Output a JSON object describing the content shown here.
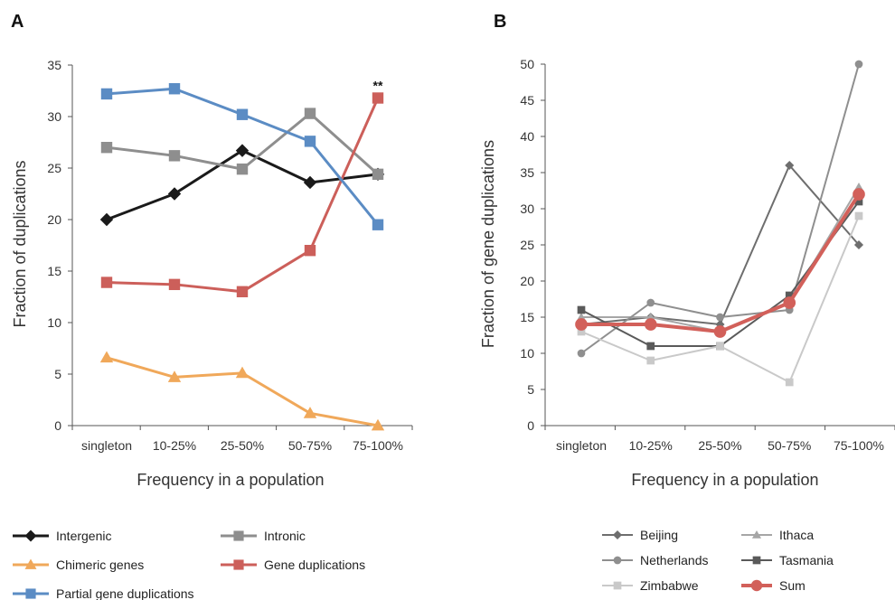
{
  "chart_data": [
    {
      "panel": "A",
      "type": "line",
      "categories": [
        "singleton",
        "10-25%",
        "25-50%",
        "50-75%",
        "75-100%"
      ],
      "xlabel": "Frequency in a population",
      "ylabel": "Fraction of duplications",
      "ylim": [
        0,
        35
      ],
      "yticks": [
        0,
        5,
        10,
        15,
        20,
        25,
        30,
        35
      ],
      "grid": false,
      "legend_position": "bottom",
      "annotations": [
        {
          "text": "**",
          "category": "75-100%",
          "y": 31.8
        }
      ],
      "series": [
        {
          "name": "Intergenic",
          "values": [
            20.0,
            22.5,
            26.7,
            23.6,
            24.4
          ],
          "color": "#1a1a1a",
          "marker": "diamond",
          "width": 3
        },
        {
          "name": "Intronic",
          "values": [
            27.0,
            26.2,
            24.9,
            30.3,
            24.4
          ],
          "color": "#8e8e8e",
          "marker": "square",
          "width": 3
        },
        {
          "name": "Chimeric genes",
          "values": [
            6.6,
            4.7,
            5.1,
            1.2,
            0.0
          ],
          "color": "#f0a85a",
          "marker": "triangle",
          "width": 3
        },
        {
          "name": "Gene duplications",
          "values": [
            13.9,
            13.7,
            13.0,
            17.0,
            31.8
          ],
          "color": "#cc5f5a",
          "marker": "square",
          "width": 3
        },
        {
          "name": "Partial gene duplications",
          "values": [
            32.2,
            32.7,
            30.2,
            27.6,
            19.5
          ],
          "color": "#5b8cc4",
          "marker": "square",
          "width": 3
        }
      ]
    },
    {
      "panel": "B",
      "type": "line",
      "categories": [
        "singleton",
        "10-25%",
        "25-50%",
        "50-75%",
        "75-100%"
      ],
      "xlabel": "Frequency in a population",
      "ylabel": "Fraction of gene duplications",
      "ylim": [
        0,
        50
      ],
      "yticks": [
        0,
        5,
        10,
        15,
        20,
        25,
        30,
        35,
        40,
        45,
        50
      ],
      "grid": false,
      "legend_position": "bottom",
      "series": [
        {
          "name": "Beijing",
          "values": [
            14.0,
            15.0,
            14.0,
            36.0,
            25.0
          ],
          "color": "#6e6e6e",
          "marker": "diamond",
          "width": 2
        },
        {
          "name": "Ithaca",
          "values": [
            15.0,
            15.0,
            13.0,
            17.0,
            33.0
          ],
          "color": "#a6a6a6",
          "marker": "triangle",
          "width": 2
        },
        {
          "name": "Netherlands",
          "values": [
            10.0,
            17.0,
            15.0,
            16.0,
            50.0
          ],
          "color": "#8f8f8f",
          "marker": "circle",
          "width": 2
        },
        {
          "name": "Tasmania",
          "values": [
            16.0,
            11.0,
            11.0,
            18.0,
            31.0
          ],
          "color": "#5a5a5a",
          "marker": "square",
          "width": 2
        },
        {
          "name": "Zimbabwe",
          "values": [
            13.0,
            9.0,
            11.0,
            6.0,
            29.0
          ],
          "color": "#c9c9c9",
          "marker": "square",
          "width": 2
        },
        {
          "name": "Sum",
          "values": [
            14.0,
            14.0,
            13.0,
            17.0,
            32.0
          ],
          "color": "#d2605a",
          "marker": "circle",
          "width": 4
        }
      ]
    }
  ]
}
